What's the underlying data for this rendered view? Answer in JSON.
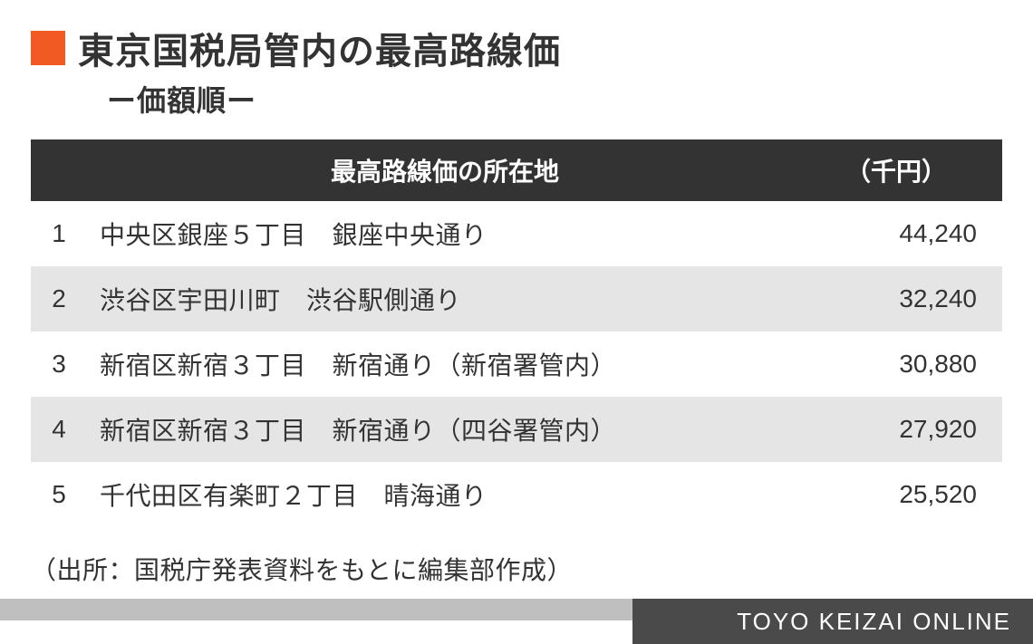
{
  "header": {
    "marker_color": "#f15a22",
    "title": "東京国税局管内の最高路線価",
    "subtitle": "ー価額順ー"
  },
  "table": {
    "type": "table",
    "header_bg": "#333333",
    "header_fg": "#ffffff",
    "row_alt_bg": "#e5e5e5",
    "row_bg": "#ffffff",
    "font_size_pt": 21,
    "columns": {
      "rank": "",
      "location": "最高路線価の所在地",
      "value": "（千円）"
    },
    "column_align": [
      "center",
      "left",
      "right"
    ],
    "rows": [
      {
        "rank": "1",
        "location": "中央区銀座５丁目　銀座中央通り",
        "value": "44,240"
      },
      {
        "rank": "2",
        "location": "渋谷区宇田川町　渋谷駅側通り",
        "value": "32,240"
      },
      {
        "rank": "3",
        "location": "新宿区新宿３丁目　新宿通り（新宿署管内）",
        "value": "30,880"
      },
      {
        "rank": "4",
        "location": "新宿区新宿３丁目　新宿通り（四谷署管内）",
        "value": "27,920"
      },
      {
        "rank": "5",
        "location": "千代田区有楽町２丁目　晴海通り",
        "value": "25,520"
      }
    ]
  },
  "source": "（出所：国税庁発表資料をもとに編集部作成）",
  "footer": {
    "brand": "TOYO KEIZAI ONLINE",
    "gray_color": "#bfbfbf",
    "dark_color": "#4a4a4a"
  }
}
